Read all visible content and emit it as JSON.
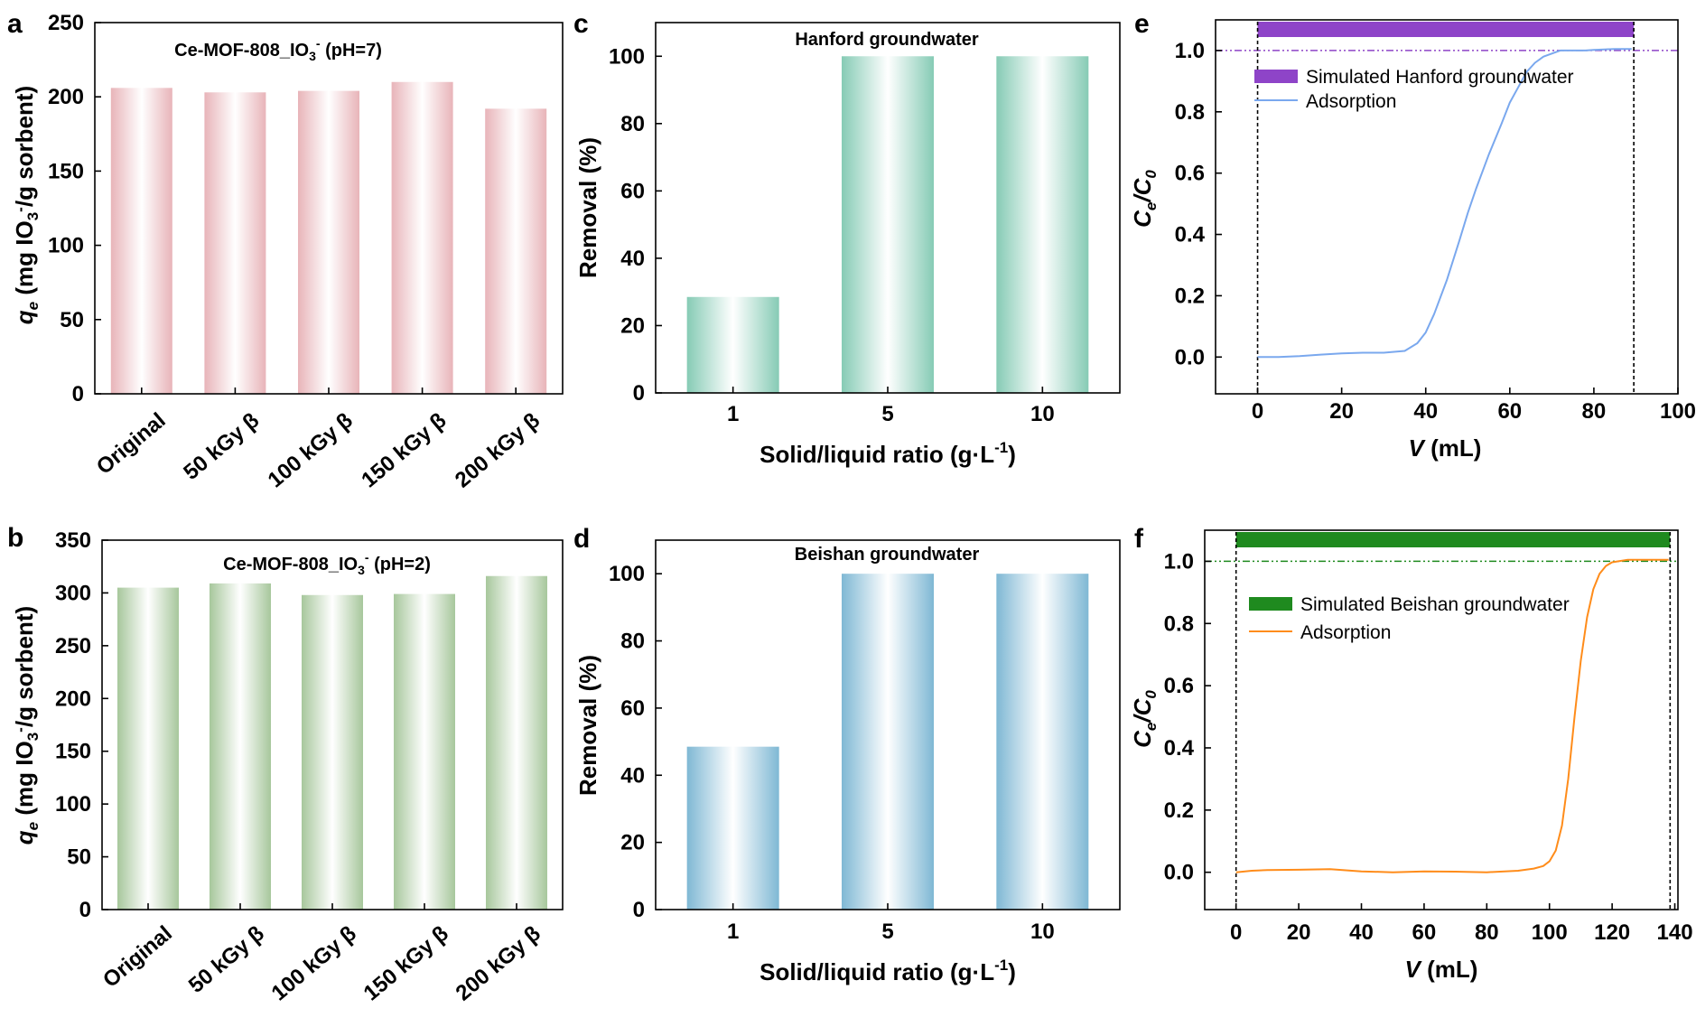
{
  "panels": {
    "a": {
      "letter": "a",
      "chart_data": {
        "type": "bar",
        "title": "Ce-MOF-808_IO₃⁻ (pH=7)",
        "categories": [
          "Original",
          "50 kGy β",
          "100 kGy β",
          "150 kGy β",
          "200 kGy β"
        ],
        "values": [
          206,
          203,
          204,
          210,
          192
        ],
        "ylabel": "qe (mg IO3-/g sorbent)",
        "ylim": [
          0,
          250
        ],
        "yticks": [
          0,
          50,
          100,
          150,
          200,
          250
        ],
        "color": "#e8b4b9"
      }
    },
    "b": {
      "letter": "b",
      "chart_data": {
        "type": "bar",
        "title": "Ce-MOF-808_IO₃⁻ (pH=2)",
        "categories": [
          "Original",
          "50 kGy β",
          "100 kGy β",
          "150 kGy β",
          "200 kGy β"
        ],
        "values": [
          305,
          309,
          298,
          299,
          316
        ],
        "ylabel": "qe (mg IO3-/g sorbent)",
        "ylim": [
          0,
          350
        ],
        "yticks": [
          0,
          50,
          100,
          150,
          200,
          250,
          300,
          350
        ],
        "color": "#a7c79c"
      }
    },
    "c": {
      "letter": "c",
      "chart_data": {
        "type": "bar",
        "title": "Hanford groundwater",
        "categories": [
          "1",
          "5",
          "10"
        ],
        "values": [
          28.5,
          100,
          100
        ],
        "xlabel": "Solid/liquid ratio (g·L⁻¹)",
        "ylabel": "Removal (%)",
        "ylim": [
          0,
          110
        ],
        "yticks": [
          0,
          20,
          40,
          60,
          80,
          100
        ],
        "color": "#86cbb5"
      }
    },
    "d": {
      "letter": "d",
      "chart_data": {
        "type": "bar",
        "title": "Beishan groundwater",
        "categories": [
          "1",
          "5",
          "10"
        ],
        "values": [
          48.5,
          100,
          100
        ],
        "xlabel": "Solid/liquid ratio (g·L⁻¹)",
        "ylabel": "Removal (%)",
        "ylim": [
          0,
          110
        ],
        "yticks": [
          0,
          20,
          40,
          60,
          80,
          100
        ],
        "color": "#7fb8d4"
      }
    },
    "e": {
      "letter": "e",
      "chart_data": {
        "type": "line",
        "xlabel": "V (mL)",
        "ylabel": "Ce/C0",
        "xlim": [
          -10,
          100
        ],
        "ylim": [
          -0.12,
          1.1
        ],
        "xticks": [
          0,
          20,
          40,
          60,
          80,
          100
        ],
        "yticks": [
          0.0,
          0.2,
          0.4,
          0.6,
          0.8,
          1.0
        ],
        "reference_y": 1.0,
        "band": {
          "label": "Simulated Hanford groundwater",
          "from": 0,
          "to": 89.5,
          "color": "#8e44c8"
        },
        "dashed_verticals": [
          0,
          89.5
        ],
        "series": [
          {
            "name": "Adsorption",
            "color": "#7aa8ee",
            "x": [
              0,
              5,
              10,
              15,
              20,
              25,
              30,
              35,
              38,
              40,
              42,
              45,
              48,
              50,
              52,
              55,
              58,
              60,
              62,
              64,
              66,
              68,
              70,
              72,
              75,
              78,
              80,
              85,
              89
            ],
            "y": [
              0.0,
              0.0,
              0.003,
              0.008,
              0.012,
              0.014,
              0.014,
              0.02,
              0.045,
              0.08,
              0.14,
              0.25,
              0.38,
              0.47,
              0.55,
              0.66,
              0.76,
              0.83,
              0.88,
              0.93,
              0.96,
              0.98,
              0.99,
              1.0,
              1.0,
              1.0,
              1.002,
              1.005,
              1.005
            ]
          }
        ]
      }
    },
    "f": {
      "letter": "f",
      "chart_data": {
        "type": "line",
        "xlabel": "V (mL)",
        "ylabel": "Ce/C0",
        "xlim": [
          -10,
          141
        ],
        "ylim": [
          -0.12,
          1.1
        ],
        "xticks": [
          0,
          20,
          40,
          60,
          80,
          100,
          120,
          140
        ],
        "yticks": [
          0.0,
          0.2,
          0.4,
          0.6,
          0.8,
          1.0
        ],
        "reference_y": 1.0,
        "band": {
          "label": "Simulated Beishan groundwater",
          "from": 0,
          "to": 138.5,
          "color": "#1f8a1f"
        },
        "dashed_verticals": [
          0,
          138.5
        ],
        "series": [
          {
            "name": "Adsorption",
            "color": "#ff8c1a",
            "x": [
              0,
              5,
              10,
              20,
              30,
              40,
              50,
              60,
              70,
              80,
              90,
              95,
              98,
              100,
              102,
              104,
              106,
              108,
              110,
              112,
              114,
              116,
              118,
              120,
              122,
              125,
              130,
              138
            ],
            "y": [
              0.0,
              0.005,
              0.007,
              0.008,
              0.01,
              0.003,
              0.0,
              0.003,
              0.002,
              0.0,
              0.005,
              0.012,
              0.02,
              0.035,
              0.07,
              0.15,
              0.3,
              0.5,
              0.68,
              0.82,
              0.91,
              0.96,
              0.985,
              0.997,
              1.0,
              1.005,
              1.005,
              1.005
            ]
          }
        ]
      }
    }
  }
}
